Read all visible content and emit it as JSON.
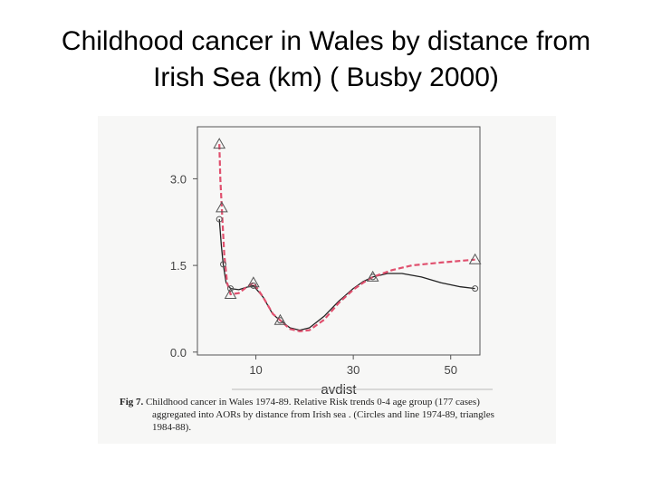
{
  "slide": {
    "title_line1": "Childhood cancer in Wales by distance from",
    "title_line2": "Irish Sea (km) ( Busby 2000)"
  },
  "caption": {
    "lead": "Fig 7.",
    "line1": "Childhood cancer in Wales 1974-89. Relative Risk trends 0-4 age group (177 cases)",
    "line2": "aggregated into AORs by distance from Irish sea . (Circles and line 1974-89, triangles",
    "line3": "1984-88)."
  },
  "chart_data": {
    "type": "line",
    "title": "",
    "xlabel": "avdist",
    "ylabel": "",
    "xlim": [
      -2,
      56
    ],
    "ylim": [
      -0.05,
      3.9
    ],
    "x_ticks": [
      10,
      30,
      50
    ],
    "x_tick_labels": [
      "10",
      "30",
      "50"
    ],
    "y_ticks": [
      0.0,
      1.5,
      3.0
    ],
    "y_tick_labels": [
      "0.0",
      "1.5",
      "3.0"
    ],
    "grid": false,
    "legend": "none",
    "series": [
      {
        "marker": "circle",
        "line_style": "solid",
        "color": "#222222",
        "points": [
          [
            2.5,
            2.3
          ],
          [
            3.3,
            1.52
          ],
          [
            4.8,
            1.1
          ],
          [
            9.5,
            1.15
          ],
          [
            15.0,
            0.55
          ],
          [
            34.0,
            1.3
          ],
          [
            55.0,
            1.1
          ]
        ],
        "curve": [
          [
            2.5,
            2.3
          ],
          [
            2.9,
            1.85
          ],
          [
            3.3,
            1.52
          ],
          [
            3.9,
            1.2
          ],
          [
            4.8,
            1.1
          ],
          [
            6.5,
            1.08
          ],
          [
            8.0,
            1.12
          ],
          [
            9.5,
            1.15
          ],
          [
            11.5,
            0.95
          ],
          [
            13.5,
            0.65
          ],
          [
            15.0,
            0.55
          ],
          [
            17.0,
            0.42
          ],
          [
            19.0,
            0.38
          ],
          [
            21.0,
            0.42
          ],
          [
            24.0,
            0.62
          ],
          [
            27.0,
            0.88
          ],
          [
            30.0,
            1.1
          ],
          [
            32.0,
            1.22
          ],
          [
            34.0,
            1.3
          ],
          [
            37.0,
            1.36
          ],
          [
            40.0,
            1.36
          ],
          [
            44.0,
            1.3
          ],
          [
            48.0,
            1.2
          ],
          [
            52.0,
            1.13
          ],
          [
            55.0,
            1.1
          ]
        ]
      },
      {
        "marker": "triangle",
        "line_style": "dashed",
        "color": "#e0506e",
        "points": [
          [
            2.5,
            3.6
          ],
          [
            3.0,
            2.5
          ],
          [
            4.8,
            1.0
          ],
          [
            9.5,
            1.2
          ],
          [
            15.0,
            0.55
          ],
          [
            34.0,
            1.3
          ],
          [
            55.0,
            1.6
          ]
        ],
        "curve": [
          [
            2.5,
            3.6
          ],
          [
            2.7,
            3.0
          ],
          [
            3.0,
            2.5
          ],
          [
            3.5,
            1.7
          ],
          [
            4.1,
            1.2
          ],
          [
            4.8,
            1.0
          ],
          [
            6.5,
            1.02
          ],
          [
            8.0,
            1.12
          ],
          [
            9.5,
            1.2
          ],
          [
            11.5,
            0.95
          ],
          [
            13.5,
            0.66
          ],
          [
            15.0,
            0.55
          ],
          [
            17.0,
            0.4
          ],
          [
            19.0,
            0.36
          ],
          [
            21.0,
            0.38
          ],
          [
            24.0,
            0.56
          ],
          [
            27.0,
            0.85
          ],
          [
            30.0,
            1.08
          ],
          [
            32.0,
            1.2
          ],
          [
            34.0,
            1.3
          ],
          [
            38.0,
            1.42
          ],
          [
            42.0,
            1.5
          ],
          [
            48.0,
            1.55
          ],
          [
            55.0,
            1.6
          ]
        ]
      }
    ]
  }
}
